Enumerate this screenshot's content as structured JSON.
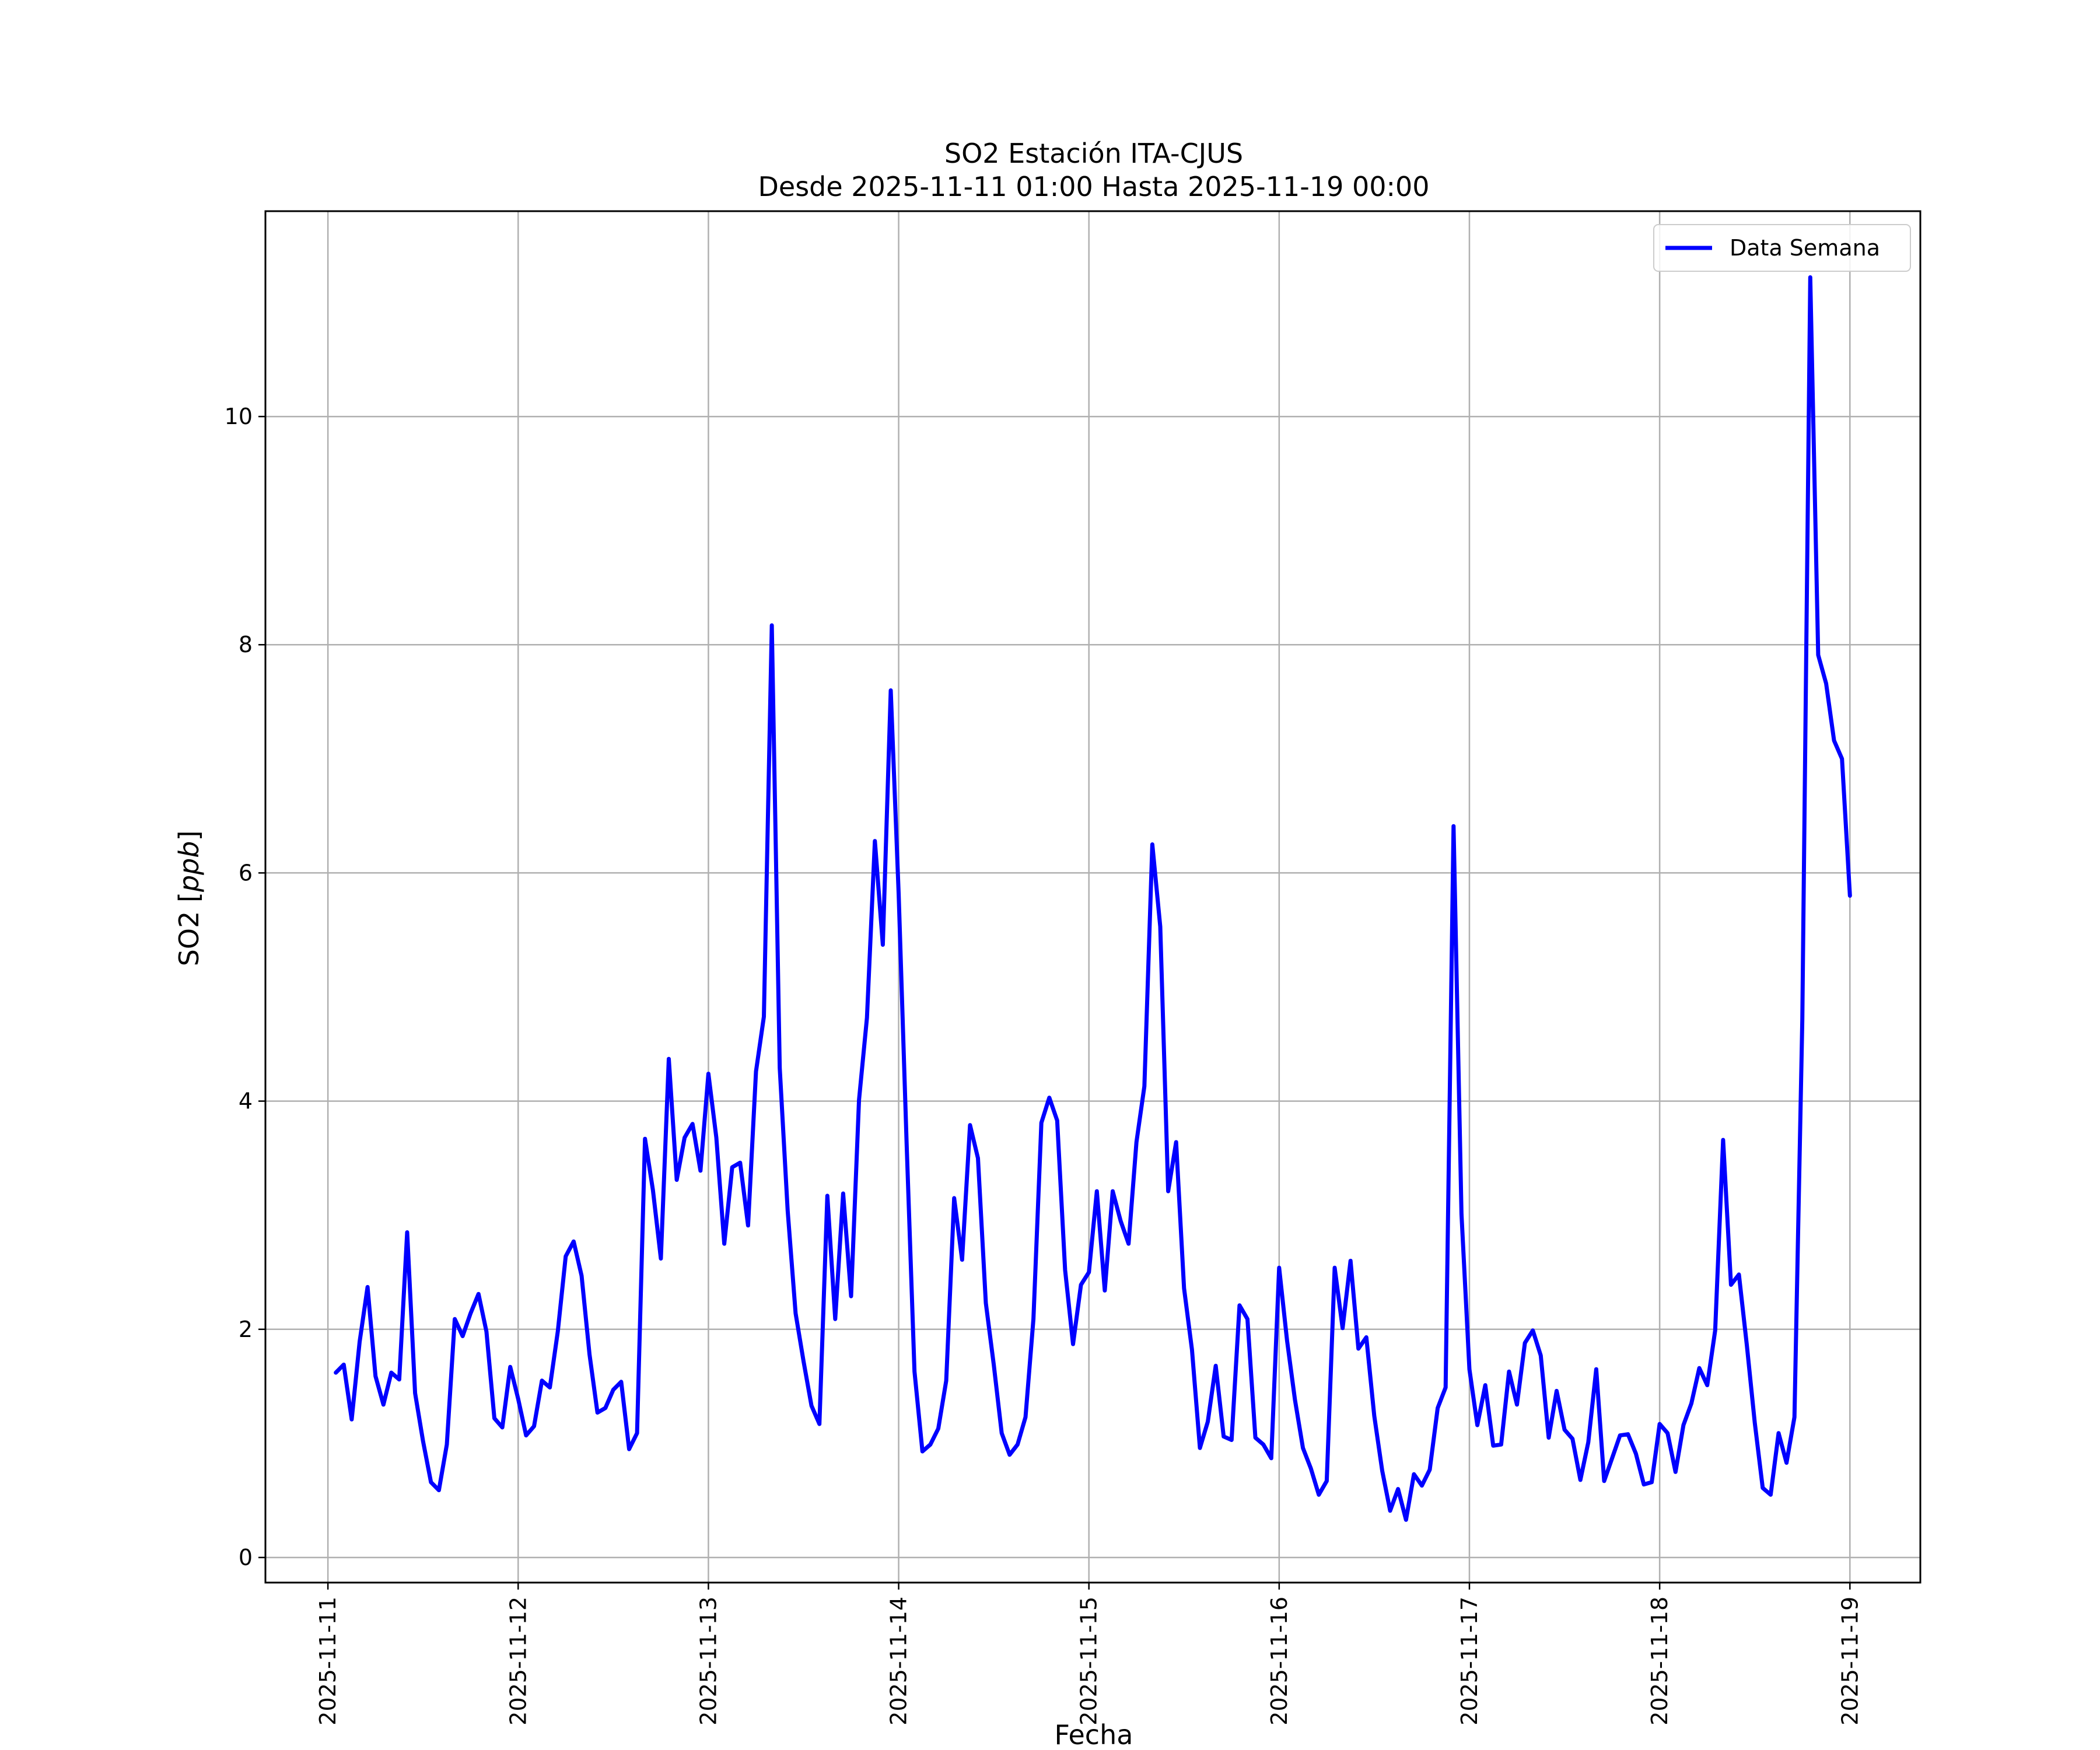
{
  "chart_data": {
    "type": "line",
    "title": "SO2 Estación ITA-CJUS",
    "subtitle": "Desde 2025-11-11 01:00 Hasta 2025-11-19 00:00",
    "xlabel": "Fecha",
    "ylabel_text": "SO2 [",
    "ylabel_unit": "ppb",
    "ylabel_close": "]",
    "x_ticks": [
      "2025-11-11",
      "2025-11-12",
      "2025-11-13",
      "2025-11-14",
      "2025-11-15",
      "2025-11-16",
      "2025-11-17",
      "2025-11-18",
      "2025-11-19"
    ],
    "y_ticks": [
      "0",
      "2",
      "4",
      "6",
      "8",
      "10"
    ],
    "xlim": [
      "2025-11-10 16:07",
      "2025-11-19 08:53"
    ],
    "ylim": [
      -0.22,
      11.8
    ],
    "grid": true,
    "legend_position": "top-right",
    "series": [
      {
        "name": "Data Semana",
        "color": "#0000ff",
        "x": [
          "2025-11-11 01:00",
          "2025-11-11 02:00",
          "2025-11-11 03:00",
          "2025-11-11 04:00",
          "2025-11-11 05:00",
          "2025-11-11 06:00",
          "2025-11-11 07:00",
          "2025-11-11 08:00",
          "2025-11-11 09:00",
          "2025-11-11 10:00",
          "2025-11-11 11:00",
          "2025-11-11 12:00",
          "2025-11-11 13:00",
          "2025-11-11 14:00",
          "2025-11-11 15:00",
          "2025-11-11 16:00",
          "2025-11-11 17:00",
          "2025-11-11 18:00",
          "2025-11-11 19:00",
          "2025-11-11 20:00",
          "2025-11-11 21:00",
          "2025-11-11 22:00",
          "2025-11-11 23:00",
          "2025-11-12 00:00",
          "2025-11-12 01:00",
          "2025-11-12 02:00",
          "2025-11-12 03:00",
          "2025-11-12 04:00",
          "2025-11-12 05:00",
          "2025-11-12 06:00",
          "2025-11-12 07:00",
          "2025-11-12 08:00",
          "2025-11-12 09:00",
          "2025-11-12 10:00",
          "2025-11-12 11:00",
          "2025-11-12 12:00",
          "2025-11-12 13:00",
          "2025-11-12 14:00",
          "2025-11-12 15:00",
          "2025-11-12 16:00",
          "2025-11-12 17:00",
          "2025-11-12 18:00",
          "2025-11-12 19:00",
          "2025-11-12 20:00",
          "2025-11-12 21:00",
          "2025-11-12 22:00",
          "2025-11-12 23:00",
          "2025-11-13 00:00",
          "2025-11-13 01:00",
          "2025-11-13 02:00",
          "2025-11-13 03:00",
          "2025-11-13 04:00",
          "2025-11-13 05:00",
          "2025-11-13 06:00",
          "2025-11-13 07:00",
          "2025-11-13 08:00",
          "2025-11-13 09:00",
          "2025-11-13 10:00",
          "2025-11-13 11:00",
          "2025-11-13 12:00",
          "2025-11-13 13:00",
          "2025-11-13 14:00",
          "2025-11-13 15:00",
          "2025-11-13 16:00",
          "2025-11-13 17:00",
          "2025-11-13 18:00",
          "2025-11-13 19:00",
          "2025-11-13 20:00",
          "2025-11-13 21:00",
          "2025-11-13 22:00",
          "2025-11-13 23:00",
          "2025-11-14 00:00",
          "2025-11-14 01:00",
          "2025-11-14 02:00",
          "2025-11-14 03:00",
          "2025-11-14 04:00",
          "2025-11-14 05:00",
          "2025-11-14 06:00",
          "2025-11-14 07:00",
          "2025-11-14 08:00",
          "2025-11-14 09:00",
          "2025-11-14 10:00",
          "2025-11-14 11:00",
          "2025-11-14 12:00",
          "2025-11-14 13:00",
          "2025-11-14 14:00",
          "2025-11-14 15:00",
          "2025-11-14 16:00",
          "2025-11-14 17:00",
          "2025-11-14 18:00",
          "2025-11-14 19:00",
          "2025-11-14 20:00",
          "2025-11-14 21:00",
          "2025-11-14 22:00",
          "2025-11-14 23:00",
          "2025-11-15 00:00",
          "2025-11-15 01:00",
          "2025-11-15 02:00",
          "2025-11-15 03:00",
          "2025-11-15 04:00",
          "2025-11-15 05:00",
          "2025-11-15 06:00",
          "2025-11-15 07:00",
          "2025-11-15 08:00",
          "2025-11-15 09:00",
          "2025-11-15 10:00",
          "2025-11-15 11:00",
          "2025-11-15 12:00",
          "2025-11-15 13:00",
          "2025-11-15 14:00",
          "2025-11-15 15:00",
          "2025-11-15 16:00",
          "2025-11-15 17:00",
          "2025-11-15 18:00",
          "2025-11-15 19:00",
          "2025-11-15 20:00",
          "2025-11-15 21:00",
          "2025-11-15 22:00",
          "2025-11-15 23:00",
          "2025-11-16 00:00",
          "2025-11-16 01:00",
          "2025-11-16 02:00",
          "2025-11-16 03:00",
          "2025-11-16 04:00",
          "2025-11-16 05:00",
          "2025-11-16 06:00",
          "2025-11-16 07:00",
          "2025-11-16 08:00",
          "2025-11-16 09:00",
          "2025-11-16 10:00",
          "2025-11-16 11:00",
          "2025-11-16 12:00",
          "2025-11-16 13:00",
          "2025-11-16 14:00",
          "2025-11-16 15:00",
          "2025-11-16 16:00",
          "2025-11-16 17:00",
          "2025-11-16 18:00",
          "2025-11-16 19:00",
          "2025-11-16 20:00",
          "2025-11-16 21:00",
          "2025-11-16 22:00",
          "2025-11-16 23:00",
          "2025-11-17 00:00",
          "2025-11-17 01:00",
          "2025-11-17 02:00",
          "2025-11-17 03:00",
          "2025-11-17 04:00",
          "2025-11-17 05:00",
          "2025-11-17 06:00",
          "2025-11-17 07:00",
          "2025-11-17 08:00",
          "2025-11-17 09:00",
          "2025-11-17 10:00",
          "2025-11-17 11:00",
          "2025-11-17 12:00",
          "2025-11-17 13:00",
          "2025-11-17 14:00",
          "2025-11-17 15:00",
          "2025-11-17 16:00",
          "2025-11-17 17:00",
          "2025-11-17 18:00",
          "2025-11-17 19:00",
          "2025-11-17 20:00",
          "2025-11-17 21:00",
          "2025-11-17 22:00",
          "2025-11-17 23:00",
          "2025-11-18 00:00",
          "2025-11-18 01:00",
          "2025-11-18 02:00",
          "2025-11-18 03:00",
          "2025-11-18 04:00",
          "2025-11-18 05:00",
          "2025-11-18 06:00",
          "2025-11-18 07:00",
          "2025-11-18 08:00",
          "2025-11-18 09:00",
          "2025-11-18 10:00",
          "2025-11-18 11:00",
          "2025-11-18 12:00",
          "2025-11-18 13:00",
          "2025-11-18 14:00",
          "2025-11-18 15:00",
          "2025-11-18 16:00",
          "2025-11-18 17:00",
          "2025-11-18 18:00",
          "2025-11-18 19:00",
          "2025-11-18 20:00",
          "2025-11-18 21:00",
          "2025-11-18 22:00",
          "2025-11-18 23:00",
          "2025-11-19 00:00"
        ],
        "y": [
          1.62,
          1.69,
          1.21,
          1.89,
          2.37,
          1.59,
          1.34,
          1.62,
          1.56,
          2.85,
          1.44,
          1.02,
          0.66,
          0.59,
          0.99,
          2.09,
          1.94,
          2.14,
          2.31,
          1.98,
          1.22,
          1.14,
          1.67,
          1.39,
          1.07,
          1.15,
          1.55,
          1.49,
          1.98,
          2.64,
          2.77,
          2.47,
          1.78,
          1.27,
          1.31,
          1.47,
          1.54,
          0.95,
          1.09,
          3.67,
          3.22,
          2.62,
          4.37,
          3.31,
          3.68,
          3.8,
          3.39,
          4.24,
          3.68,
          2.75,
          3.42,
          3.46,
          2.91,
          4.26,
          4.74,
          8.17,
          4.29,
          3.04,
          2.14,
          1.72,
          1.33,
          1.17,
          3.17,
          2.09,
          3.19,
          2.29,
          4.01,
          4.73,
          6.28,
          5.37,
          7.6,
          5.81,
          3.63,
          1.63,
          0.93,
          0.99,
          1.13,
          1.55,
          3.15,
          2.61,
          3.79,
          3.5,
          2.23,
          1.69,
          1.09,
          0.9,
          0.99,
          1.23,
          2.09,
          3.81,
          4.03,
          3.83,
          2.52,
          1.87,
          2.39,
          2.5,
          3.21,
          2.34,
          3.21,
          2.95,
          2.75,
          3.64,
          4.13,
          6.25,
          5.53,
          3.21,
          3.64,
          2.36,
          1.82,
          0.96,
          1.19,
          1.68,
          1.06,
          1.03,
          2.21,
          2.09,
          1.05,
          0.99,
          0.87,
          2.54,
          1.9,
          1.38,
          0.96,
          0.78,
          0.55,
          0.67,
          2.54,
          2.01,
          2.6,
          1.83,
          1.93,
          1.24,
          0.76,
          0.41,
          0.6,
          0.33,
          0.73,
          0.63,
          0.77,
          1.31,
          1.49,
          6.41,
          3.01,
          1.65,
          1.16,
          1.51,
          0.98,
          0.99,
          1.63,
          1.34,
          1.88,
          1.99,
          1.77,
          1.05,
          1.46,
          1.12,
          1.04,
          0.68,
          1.01,
          1.65,
          0.67,
          0.87,
          1.07,
          1.08,
          0.91,
          0.64,
          0.66,
          1.17,
          1.09,
          0.75,
          1.16,
          1.35,
          1.66,
          1.51,
          1.99,
          3.66,
          2.39,
          2.48,
          1.86,
          1.18,
          0.61,
          0.55,
          1.09,
          0.83,
          1.23,
          4.72,
          11.22,
          7.91,
          7.66,
          7.16,
          7.0,
          5.8
        ]
      }
    ]
  }
}
